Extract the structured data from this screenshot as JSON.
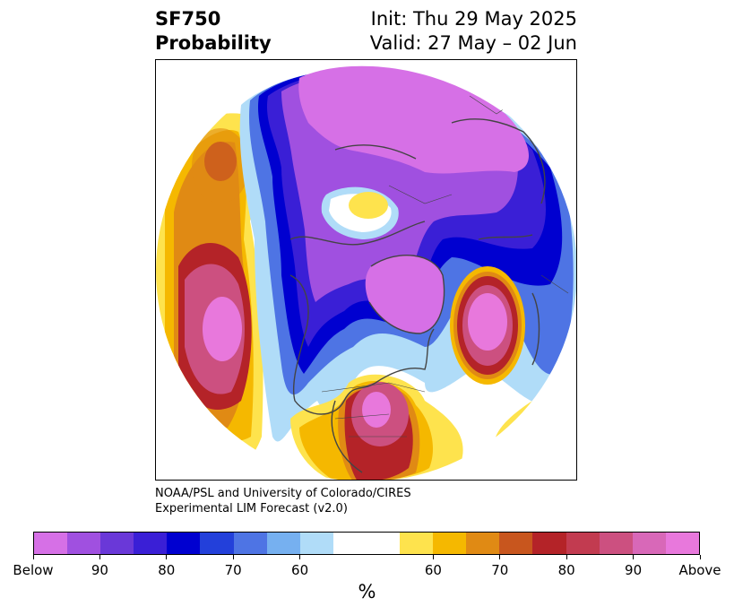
{
  "header": {
    "title_line1": "SF750",
    "title_line2": "Probability",
    "init": "Init: Thu 29 May 2025",
    "valid": "Valid: 27 May – 02 Jun"
  },
  "credit": {
    "line1": "NOAA/PSL and University of Colorado/CIRES",
    "line2": "Experimental LIM Forecast (v2.0)"
  },
  "colorbar": {
    "colors": [
      "#d670e6",
      "#a050e0",
      "#6a38d8",
      "#3a1fd6",
      "#0000d0",
      "#2340da",
      "#4e74e4",
      "#76b0f0",
      "#b0dcf8",
      "#ffffff",
      "#ffffff",
      "#fee34d",
      "#f5b800",
      "#e08a14",
      "#c8561e",
      "#b42328",
      "#c23b50",
      "#cc5080",
      "#d868b8",
      "#e878dc"
    ],
    "labels": [
      "Below",
      "90",
      "80",
      "70",
      "60",
      "60",
      "70",
      "80",
      "90",
      "Above"
    ],
    "units": "%"
  },
  "map": {
    "colors": {
      "below_max": "#d670e6",
      "below_90": "#a050e0",
      "below_80": "#3a1fd6",
      "below_70": "#0000d0",
      "below_60": "#4e74e4",
      "below_50": "#b0dcf8",
      "above_50": "#fee34d",
      "above_60": "#f5b800",
      "above_70": "#e08a14",
      "above_80": "#b42328",
      "above_90": "#cc5080",
      "above_max": "#e878dc",
      "coast": "#444444"
    }
  }
}
